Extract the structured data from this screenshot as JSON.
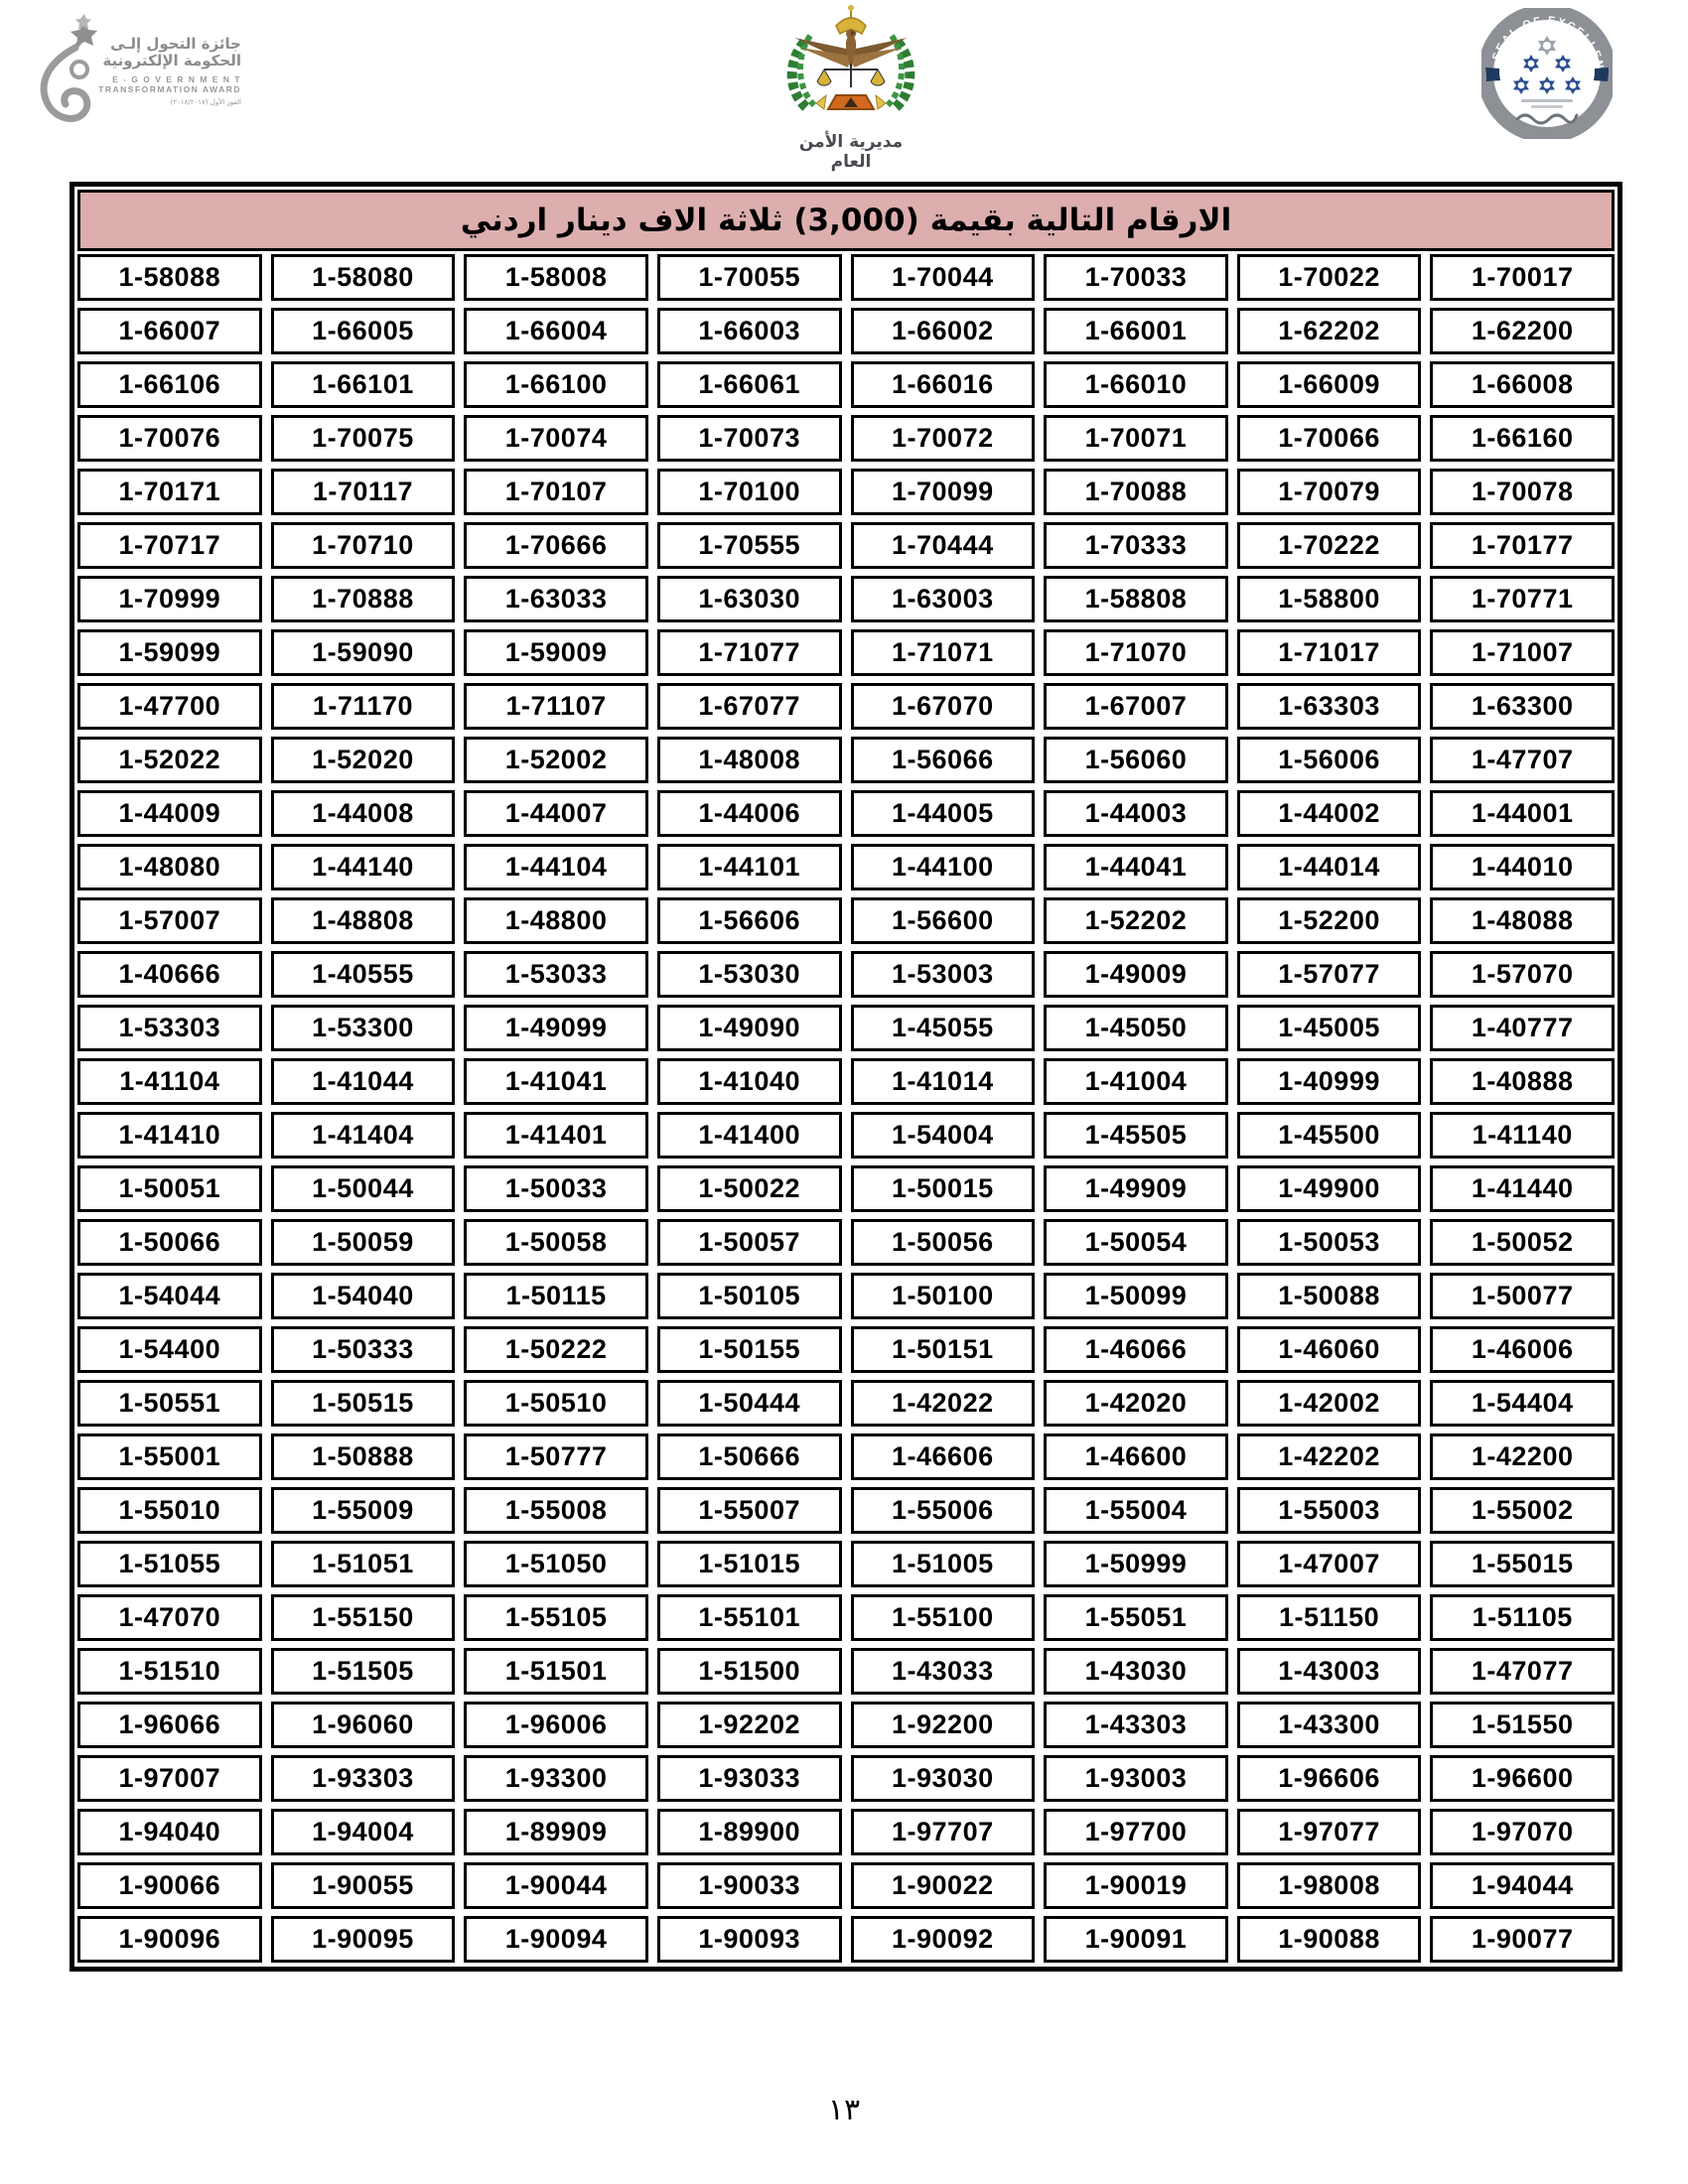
{
  "header": {
    "egov_award": {
      "arabic_line1": "جائزة التحول إلـى",
      "arabic_line2": "الحكومة الإلكترونية",
      "english_line1": "E - G O V E R N M E N T",
      "english_line2": "TRANSFORMATION AWARD",
      "small_text": "الفوز الأول (٢٠١٨/٢٠١٧)"
    },
    "psd_emblem": {
      "caption": "مديرية الأمن العام"
    },
    "seal_of_excellence": {
      "ring_text": "SEAL OF EXCELLENCE"
    }
  },
  "table": {
    "title": "الارقام التالية بقيمة  (3,000) ثلاثة الاف دينار اردني",
    "title_bg": "#dcaeae",
    "rows": [
      [
        "1-58088",
        "1-58080",
        "1-58008",
        "1-70055",
        "1-70044",
        "1-70033",
        "1-70022",
        "1-70017"
      ],
      [
        "1-66007",
        "1-66005",
        "1-66004",
        "1-66003",
        "1-66002",
        "1-66001",
        "1-62202",
        "1-62200"
      ],
      [
        "1-66106",
        "1-66101",
        "1-66100",
        "1-66061",
        "1-66016",
        "1-66010",
        "1-66009",
        "1-66008"
      ],
      [
        "1-70076",
        "1-70075",
        "1-70074",
        "1-70073",
        "1-70072",
        "1-70071",
        "1-70066",
        "1-66160"
      ],
      [
        "1-70171",
        "1-70117",
        "1-70107",
        "1-70100",
        "1-70099",
        "1-70088",
        "1-70079",
        "1-70078"
      ],
      [
        "1-70717",
        "1-70710",
        "1-70666",
        "1-70555",
        "1-70444",
        "1-70333",
        "1-70222",
        "1-70177"
      ],
      [
        "1-70999",
        "1-70888",
        "1-63033",
        "1-63030",
        "1-63003",
        "1-58808",
        "1-58800",
        "1-70771"
      ],
      [
        "1-59099",
        "1-59090",
        "1-59009",
        "1-71077",
        "1-71071",
        "1-71070",
        "1-71017",
        "1-71007"
      ],
      [
        "1-47700",
        "1-71170",
        "1-71107",
        "1-67077",
        "1-67070",
        "1-67007",
        "1-63303",
        "1-63300"
      ],
      [
        "1-52022",
        "1-52020",
        "1-52002",
        "1-48008",
        "1-56066",
        "1-56060",
        "1-56006",
        "1-47707"
      ],
      [
        "1-44009",
        "1-44008",
        "1-44007",
        "1-44006",
        "1-44005",
        "1-44003",
        "1-44002",
        "1-44001"
      ],
      [
        "1-48080",
        "1-44140",
        "1-44104",
        "1-44101",
        "1-44100",
        "1-44041",
        "1-44014",
        "1-44010"
      ],
      [
        "1-57007",
        "1-48808",
        "1-48800",
        "1-56606",
        "1-56600",
        "1-52202",
        "1-52200",
        "1-48088"
      ],
      [
        "1-40666",
        "1-40555",
        "1-53033",
        "1-53030",
        "1-53003",
        "1-49009",
        "1-57077",
        "1-57070"
      ],
      [
        "1-53303",
        "1-53300",
        "1-49099",
        "1-49090",
        "1-45055",
        "1-45050",
        "1-45005",
        "1-40777"
      ],
      [
        "1-41104",
        "1-41044",
        "1-41041",
        "1-41040",
        "1-41014",
        "1-41004",
        "1-40999",
        "1-40888"
      ],
      [
        "1-41410",
        "1-41404",
        "1-41401",
        "1-41400",
        "1-54004",
        "1-45505",
        "1-45500",
        "1-41140"
      ],
      [
        "1-50051",
        "1-50044",
        "1-50033",
        "1-50022",
        "1-50015",
        "1-49909",
        "1-49900",
        "1-41440"
      ],
      [
        "1-50066",
        "1-50059",
        "1-50058",
        "1-50057",
        "1-50056",
        "1-50054",
        "1-50053",
        "1-50052"
      ],
      [
        "1-54044",
        "1-54040",
        "1-50115",
        "1-50105",
        "1-50100",
        "1-50099",
        "1-50088",
        "1-50077"
      ],
      [
        "1-54400",
        "1-50333",
        "1-50222",
        "1-50155",
        "1-50151",
        "1-46066",
        "1-46060",
        "1-46006"
      ],
      [
        "1-50551",
        "1-50515",
        "1-50510",
        "1-50444",
        "1-42022",
        "1-42020",
        "1-42002",
        "1-54404"
      ],
      [
        "1-55001",
        "1-50888",
        "1-50777",
        "1-50666",
        "1-46606",
        "1-46600",
        "1-42202",
        "1-42200"
      ],
      [
        "1-55010",
        "1-55009",
        "1-55008",
        "1-55007",
        "1-55006",
        "1-55004",
        "1-55003",
        "1-55002"
      ],
      [
        "1-51055",
        "1-51051",
        "1-51050",
        "1-51015",
        "1-51005",
        "1-50999",
        "1-47007",
        "1-55015"
      ],
      [
        "1-47070",
        "1-55150",
        "1-55105",
        "1-55101",
        "1-55100",
        "1-55051",
        "1-51150",
        "1-51105"
      ],
      [
        "1-51510",
        "1-51505",
        "1-51501",
        "1-51500",
        "1-43033",
        "1-43030",
        "1-43003",
        "1-47077"
      ],
      [
        "1-96066",
        "1-96060",
        "1-96006",
        "1-92202",
        "1-92200",
        "1-43303",
        "1-43300",
        "1-51550"
      ],
      [
        "1-97007",
        "1-93303",
        "1-93300",
        "1-93033",
        "1-93030",
        "1-93003",
        "1-96606",
        "1-96600"
      ],
      [
        "1-94040",
        "1-94004",
        "1-89909",
        "1-89900",
        "1-97707",
        "1-97700",
        "1-97077",
        "1-97070"
      ],
      [
        "1-90066",
        "1-90055",
        "1-90044",
        "1-90033",
        "1-90022",
        "1-90019",
        "1-98008",
        "1-94044"
      ],
      [
        "1-90096",
        "1-90095",
        "1-90094",
        "1-90093",
        "1-90092",
        "1-90091",
        "1-90088",
        "1-90077"
      ]
    ]
  },
  "footer": {
    "page_number": "١٣"
  }
}
